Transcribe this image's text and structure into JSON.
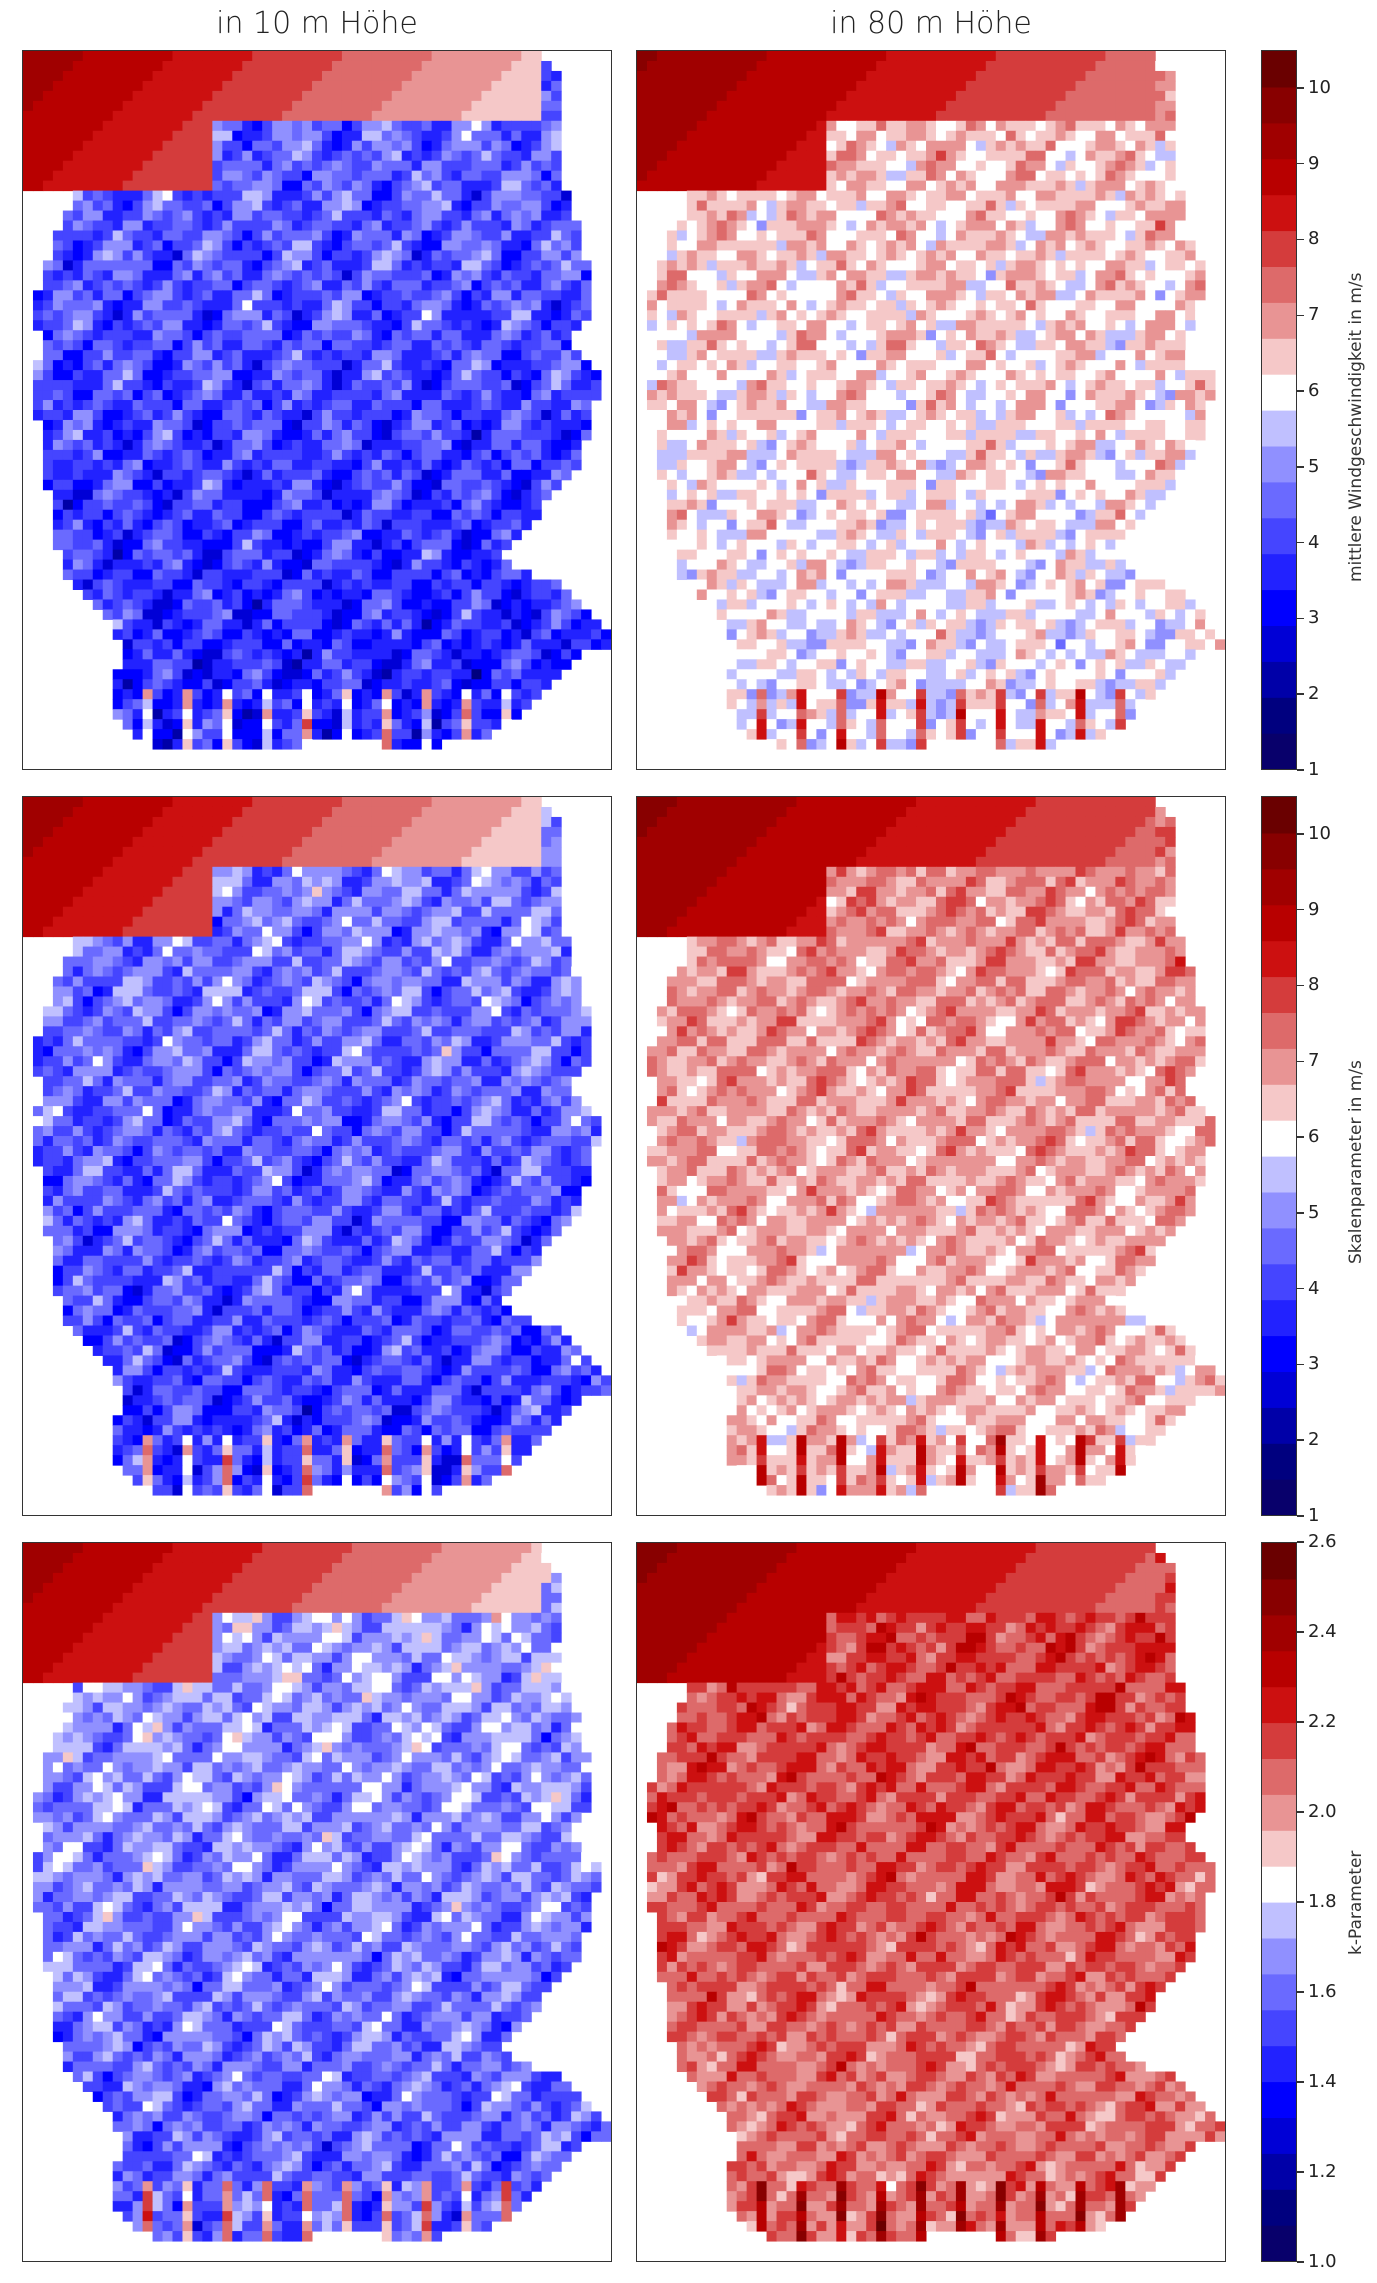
{
  "columns": [
    "in 10 m Höhe",
    "in 80 m Höhe"
  ],
  "colorbars": [
    {
      "label": "mittlere Windgeschwindigkeit in m/s",
      "ticks": [
        1,
        2,
        3,
        4,
        5,
        6,
        7,
        8,
        9,
        10
      ],
      "tick_labels": [
        "1",
        "2",
        "3",
        "4",
        "5",
        "6",
        "7",
        "8",
        "9",
        "10"
      ],
      "min": 1,
      "max": 10.5
    },
    {
      "label": "Skalenparameter in m/s",
      "ticks": [
        1,
        2,
        3,
        4,
        5,
        6,
        7,
        8,
        9,
        10
      ],
      "tick_labels": [
        "1",
        "2",
        "3",
        "4",
        "5",
        "6",
        "7",
        "8",
        "9",
        "10"
      ],
      "min": 1,
      "max": 10.5
    },
    {
      "label": "k-Parameter",
      "ticks": [
        1.0,
        1.2,
        1.4,
        1.6,
        1.8,
        2.0,
        2.2,
        2.4,
        2.6
      ],
      "tick_labels": [
        "1.0",
        "1.2",
        "1.4",
        "1.6",
        "1.8",
        "2.0",
        "2.2",
        "2.4",
        "2.6"
      ],
      "min": 1.0,
      "max": 2.6
    }
  ],
  "colors": {
    "palette": [
      "#08006b",
      "#00007f",
      "#0000a8",
      "#0000d6",
      "#0000ff",
      "#2222ff",
      "#4545ff",
      "#6a6aff",
      "#9090ff",
      "#c0c0ff",
      "#ffffff",
      "#f5c8c8",
      "#e89494",
      "#dd6a6a",
      "#d43c3c",
      "#cc1010",
      "#b80000",
      "#a00000",
      "#880000",
      "#6a0000"
    ]
  },
  "chart_data": [
    {
      "type": "heatmap",
      "row": 1,
      "column": "in 10 m Höhe",
      "quantity": "mittlere Windgeschwindigkeit in m/s",
      "typical_value": 3.5,
      "value_range": [
        1.5,
        10.5
      ]
    },
    {
      "type": "heatmap",
      "row": 1,
      "column": "in 80 m Höhe",
      "quantity": "mittlere Windgeschwindigkeit in m/s",
      "typical_value": 5.8,
      "value_range": [
        3.5,
        10.5
      ]
    },
    {
      "type": "heatmap",
      "row": 2,
      "column": "in 10 m Höhe",
      "quantity": "Skalenparameter in m/s",
      "typical_value": 3.8,
      "value_range": [
        1.5,
        10.5
      ]
    },
    {
      "type": "heatmap",
      "row": 2,
      "column": "in 80 m Höhe",
      "quantity": "Skalenparameter in m/s",
      "typical_value": 6.4,
      "value_range": [
        4,
        10.5
      ]
    },
    {
      "type": "heatmap",
      "row": 3,
      "column": "in 10 m Höhe",
      "quantity": "k-Parameter",
      "typical_value": 1.55,
      "value_range": [
        1.1,
        2.6
      ]
    },
    {
      "type": "heatmap",
      "row": 3,
      "column": "in 80 m Höhe",
      "quantity": "k-Parameter",
      "typical_value": 2.05,
      "value_range": [
        1.5,
        2.6
      ]
    }
  ]
}
